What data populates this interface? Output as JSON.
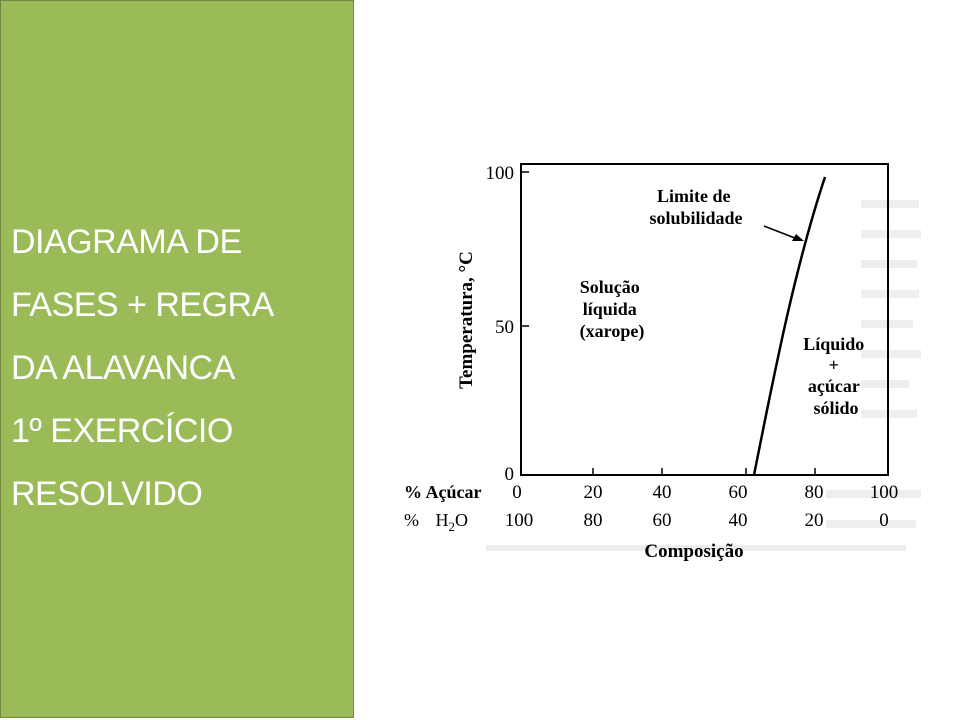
{
  "sidebar": {
    "background": "#9bbb59",
    "text_color": "#ffffff",
    "lines": [
      "DIAGRAMA DE",
      "FASES + REGRA",
      "DA ALAVANCA",
      "1º EXERCÍCIO",
      "RESOLVIDO"
    ]
  },
  "figure": {
    "y_axis_label": "Temperatura, °C",
    "y_ticks": [
      "100",
      "50",
      "0"
    ],
    "x_row1_label": "% Açúcar",
    "x_row1_ticks": [
      "0",
      "20",
      "40",
      "60",
      "80",
      "100"
    ],
    "x_row2_label_prefix": "%",
    "x_row2_label_formula": "H",
    "x_row2_label_sub": "2",
    "x_row2_label_suffix": "O",
    "x_row2_ticks": [
      "100",
      "80",
      "60",
      "40",
      "20",
      "0"
    ],
    "x_axis_label": "Composição",
    "region_liquid": [
      "Solução",
      "líquida",
      "(xarope)"
    ],
    "region_mixed": [
      "Líquido",
      "+",
      "açúcar",
      "sólido"
    ],
    "curve_label": [
      "Limite de",
      "solubilidade"
    ],
    "solubility_curve": {
      "x_unit": "% Açúcar",
      "y_unit": "°C",
      "points": [
        [
          65,
          0
        ],
        [
          71,
          50
        ],
        [
          77,
          85
        ],
        [
          80,
          100
        ]
      ]
    }
  }
}
